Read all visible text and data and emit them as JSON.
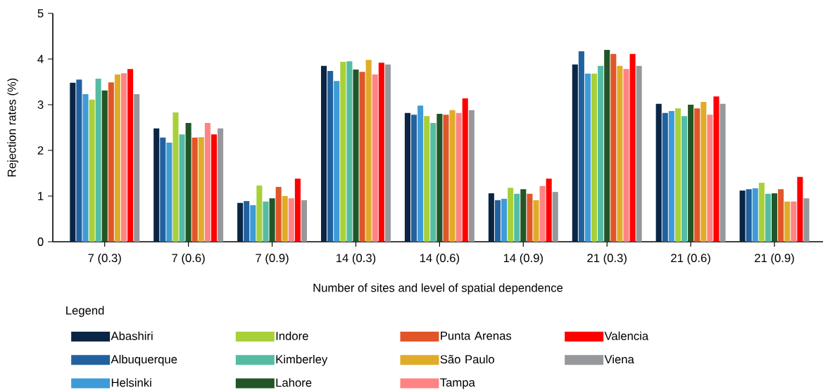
{
  "chart_data": {
    "type": "bar",
    "xlabel": "Number of sites and level of spatial dependence",
    "ylabel": "Rejection rates (%)",
    "legend_title": "Legend",
    "legend": "bottom",
    "categories": [
      "7 (0.3)",
      "7 (0.6)",
      "7 (0.9)",
      "14 (0.3)",
      "14 (0.6)",
      "14 (0.9)",
      "21 (0.3)",
      "21 (0.6)",
      "21 (0.9)"
    ],
    "ylim": [
      0,
      5
    ],
    "yticks": [
      0,
      1,
      2,
      3,
      4,
      5
    ],
    "series": [
      {
        "name": "Abashiri",
        "color": "#0a2545",
        "values": [
          3.48,
          2.48,
          0.85,
          3.85,
          2.82,
          1.06,
          3.88,
          3.02,
          1.12
        ]
      },
      {
        "name": "Albuquerque",
        "color": "#22619f",
        "values": [
          3.55,
          2.28,
          0.89,
          3.74,
          2.78,
          0.91,
          4.17,
          2.82,
          1.15
        ]
      },
      {
        "name": "Helsinki",
        "color": "#3e9bd7",
        "values": [
          3.23,
          2.17,
          0.8,
          3.52,
          2.98,
          0.94,
          3.68,
          2.86,
          1.17
        ]
      },
      {
        "name": "Indore",
        "color": "#a8d039",
        "values": [
          3.11,
          2.83,
          1.23,
          3.94,
          2.75,
          1.18,
          3.68,
          2.92,
          1.29
        ]
      },
      {
        "name": "Kimberley",
        "color": "#55bca3",
        "values": [
          3.57,
          2.35,
          0.88,
          3.95,
          2.6,
          1.05,
          3.85,
          2.75,
          1.05
        ]
      },
      {
        "name": "Lahore",
        "color": "#225628",
        "values": [
          3.31,
          2.6,
          0.95,
          3.77,
          2.8,
          1.15,
          4.2,
          3.0,
          1.06
        ]
      },
      {
        "name": "Punta Arenas",
        "color": "#e15628",
        "values": [
          3.49,
          2.28,
          1.2,
          3.72,
          2.78,
          1.05,
          4.11,
          2.92,
          1.15
        ]
      },
      {
        "name": "São Paulo",
        "color": "#e0ac28",
        "values": [
          3.66,
          2.29,
          1.0,
          3.98,
          2.88,
          0.91,
          3.85,
          3.06,
          0.88
        ]
      },
      {
        "name": "Tampa",
        "color": "#ff8383",
        "values": [
          3.69,
          2.6,
          0.95,
          3.66,
          2.82,
          1.22,
          3.78,
          2.78,
          0.88
        ]
      },
      {
        "name": "Valencia",
        "color": "#ff0000",
        "values": [
          3.78,
          2.35,
          1.38,
          3.92,
          3.14,
          1.38,
          4.11,
          3.18,
          1.42
        ]
      },
      {
        "name": "Viena",
        "color": "#97989b",
        "values": [
          3.23,
          2.48,
          0.91,
          3.88,
          2.88,
          1.09,
          3.85,
          3.02,
          0.95
        ]
      }
    ]
  }
}
